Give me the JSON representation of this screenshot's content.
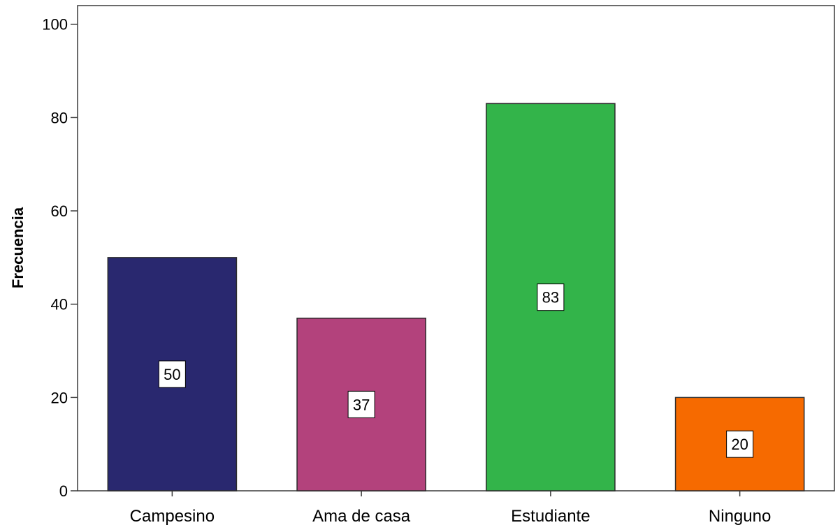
{
  "chart_data": {
    "type": "bar",
    "title": "",
    "xlabel": "",
    "ylabel": "Frecuencia",
    "categories": [
      "Campesino",
      "Ama de casa",
      "Estudiante",
      "Ninguno"
    ],
    "values": [
      50,
      37,
      83,
      20
    ],
    "data_labels": [
      "50",
      "37",
      "83",
      "20"
    ],
    "colors": [
      "#29286f",
      "#b3427c",
      "#33b44a",
      "#f66a00"
    ],
    "ylim": [
      0,
      104
    ],
    "yticks": [
      0,
      20,
      40,
      60,
      80,
      100
    ],
    "ytick_labels": [
      "0",
      "20",
      "40",
      "60",
      "80",
      "100"
    ],
    "grid": false,
    "legend": "none"
  }
}
